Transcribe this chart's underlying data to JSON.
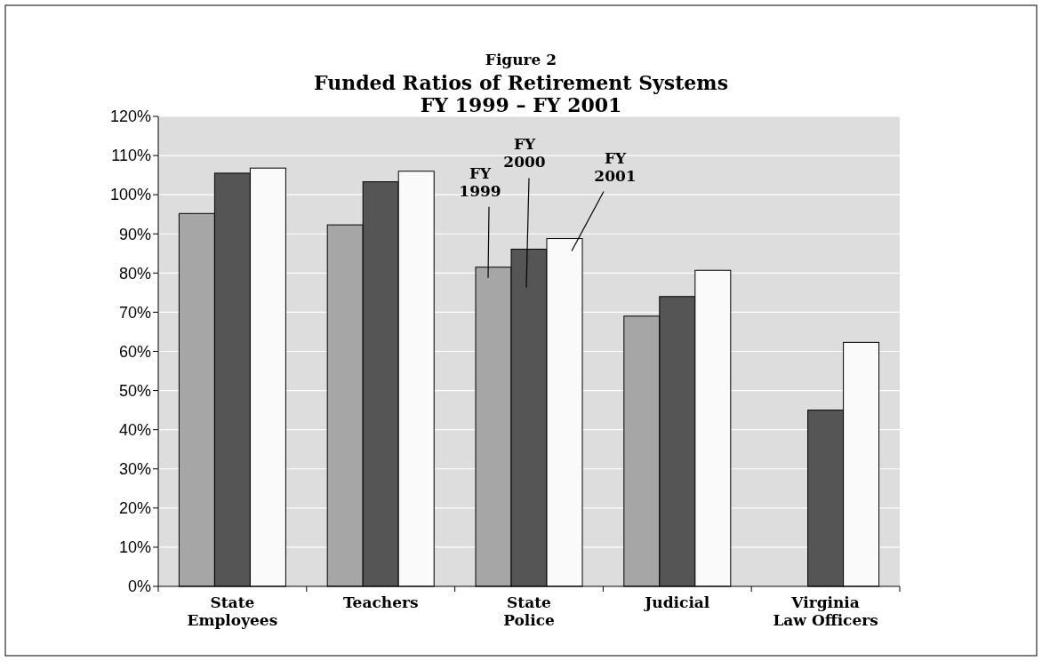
{
  "chart_data": {
    "type": "bar",
    "title": "Funded Ratios of Retirement Systems",
    "subtitle": "FY 1999 – FY 2001",
    "annotations": [
      "Figure 2"
    ],
    "categories": [
      "State\nEmployees",
      "Teachers",
      "State\nPolice",
      "Judicial",
      "Virginia\nLaw Officers"
    ],
    "series": [
      {
        "name": "FY 1999",
        "color": "#a6a6a6",
        "values": [
          95.2,
          92.3,
          81.5,
          69,
          null
        ]
      },
      {
        "name": "FY 2000",
        "color": "#555555",
        "values": [
          105.5,
          103.3,
          86.1,
          74,
          45
        ]
      },
      {
        "name": "FY 2001",
        "color": "#fafafa",
        "values": [
          106.8,
          106,
          88.8,
          80.7,
          62.3
        ]
      }
    ],
    "ylim": [
      0,
      120
    ],
    "yticks": [
      {
        "value": 0,
        "label": "0%"
      },
      {
        "value": 10,
        "label": "10%"
      },
      {
        "value": 20,
        "label": "20%"
      },
      {
        "value": 30,
        "label": "30%"
      },
      {
        "value": 40,
        "label": "40%"
      },
      {
        "value": 50,
        "label": "50%"
      },
      {
        "value": 60,
        "label": "60%"
      },
      {
        "value": 70,
        "label": "70%"
      },
      {
        "value": 80,
        "label": "80%"
      },
      {
        "value": 90,
        "label": "90%"
      },
      {
        "value": 100,
        "label": "100%"
      },
      {
        "value": 110,
        "label": "110%"
      },
      {
        "value": 120,
        "label": "120%"
      }
    ],
    "grid": "y",
    "legend": false
  }
}
